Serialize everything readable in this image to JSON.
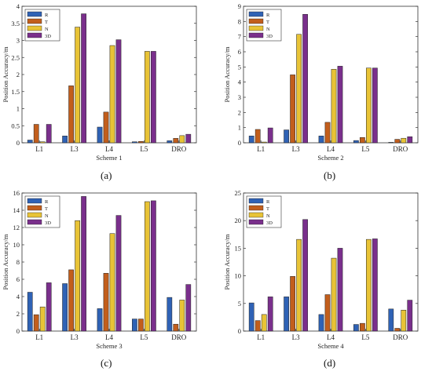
{
  "colors": {
    "R": "#2f62b5",
    "T": "#c25e1c",
    "N": "#e8c336",
    "3D": "#7a2f8c"
  },
  "chart_data": [
    {
      "type": "bar",
      "panel_label": "(a)",
      "xlabel": "Scheme 1",
      "ylabel": "Position Accuracy/m",
      "categories": [
        "L1",
        "L3",
        "L4",
        "L5",
        "DRO"
      ],
      "ylim": [
        0,
        4
      ],
      "yticks": [
        "0",
        "0.5",
        "1",
        "1.5",
        "2",
        "2.5",
        "3",
        "3.5",
        "4"
      ],
      "legend_position": "top-left",
      "series": [
        {
          "name": "R",
          "values": [
            0.08,
            0.2,
            0.46,
            0.03,
            0.06
          ]
        },
        {
          "name": "T",
          "values": [
            0.54,
            1.67,
            0.9,
            0.04,
            0.13
          ]
        },
        {
          "name": "N",
          "values": [
            0.03,
            3.39,
            2.85,
            2.68,
            0.21
          ]
        },
        {
          "name": "3D",
          "values": [
            0.54,
            3.78,
            3.02,
            2.68,
            0.25
          ]
        }
      ]
    },
    {
      "type": "bar",
      "panel_label": "(b)",
      "xlabel": "Scheme 2",
      "ylabel": "Position Accuracy/m",
      "categories": [
        "L1",
        "L3",
        "L4",
        "L5",
        "DRO"
      ],
      "ylim": [
        0,
        9
      ],
      "yticks": [
        "0",
        "1",
        "2",
        "3",
        "4",
        "5",
        "6",
        "7",
        "8",
        "9"
      ],
      "legend_position": "top-left",
      "series": [
        {
          "name": "R",
          "values": [
            0.45,
            0.85,
            0.45,
            0.15,
            0.03
          ]
        },
        {
          "name": "T",
          "values": [
            0.88,
            4.48,
            1.35,
            0.35,
            0.23
          ]
        },
        {
          "name": "N",
          "values": [
            0.05,
            7.15,
            4.85,
            4.93,
            0.3
          ]
        },
        {
          "name": "3D",
          "values": [
            0.98,
            8.47,
            5.05,
            4.93,
            0.4
          ]
        }
      ]
    },
    {
      "type": "bar",
      "panel_label": "(c)",
      "xlabel": "Scheme 3",
      "ylabel": "Position Accuracy/m",
      "categories": [
        "L1",
        "L3",
        "L4",
        "L5",
        "DRO"
      ],
      "ylim": [
        0,
        16
      ],
      "yticks": [
        "0",
        "2",
        "4",
        "6",
        "8",
        "10",
        "12",
        "14",
        "16"
      ],
      "legend_position": "top-left",
      "series": [
        {
          "name": "R",
          "values": [
            4.5,
            5.5,
            2.6,
            1.4,
            3.9
          ]
        },
        {
          "name": "T",
          "values": [
            1.9,
            7.1,
            6.7,
            1.4,
            0.8
          ]
        },
        {
          "name": "N",
          "values": [
            2.8,
            12.8,
            11.3,
            15.0,
            3.6
          ]
        },
        {
          "name": "3D",
          "values": [
            5.6,
            15.6,
            13.4,
            15.1,
            5.4
          ]
        }
      ]
    },
    {
      "type": "bar",
      "panel_label": "(d)",
      "xlabel": "Scheme 4",
      "ylabel": "Position Accuracy/m",
      "categories": [
        "L1",
        "L3",
        "L4",
        "L5",
        "DRO"
      ],
      "ylim": [
        0,
        25
      ],
      "yticks": [
        "0",
        "5",
        "10",
        "15",
        "20",
        "25"
      ],
      "legend_position": "top-left",
      "series": [
        {
          "name": "R",
          "values": [
            5.1,
            6.2,
            3.0,
            1.2,
            4.0
          ]
        },
        {
          "name": "T",
          "values": [
            1.9,
            9.9,
            6.6,
            1.4,
            0.5
          ]
        },
        {
          "name": "N",
          "values": [
            3.0,
            16.6,
            13.2,
            16.6,
            3.8
          ]
        },
        {
          "name": "3D",
          "values": [
            6.2,
            20.2,
            15.0,
            16.7,
            5.6
          ]
        }
      ]
    }
  ]
}
